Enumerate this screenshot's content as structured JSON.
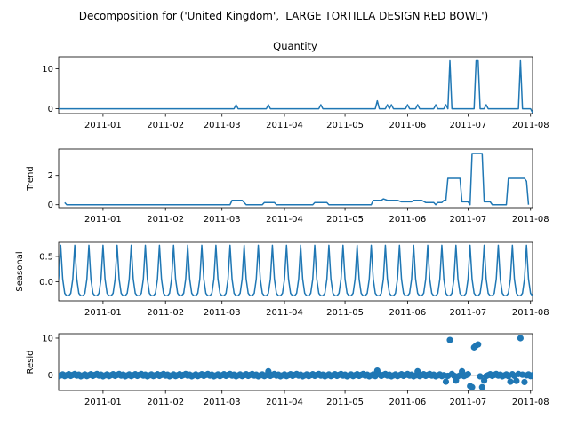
{
  "chart_data": {
    "type": "line",
    "title": "Decomposition for ('United Kingdom', 'LARGE TORTILLA DESIGN RED BOWL')",
    "colors": {
      "line": "#1f77b4",
      "axis": "#000000",
      "resid_zero": "#000000"
    },
    "x_ticks": [
      "2011-01",
      "2011-02",
      "2011-03",
      "2011-04",
      "2011-05",
      "2011-06",
      "2011-07",
      "2011-08"
    ],
    "x_range": [
      "2010-12-10",
      "2011-08-02"
    ],
    "panels": [
      {
        "key": "observed",
        "title": "Quantity",
        "ylabel": "",
        "ylim": [
          -1.2,
          13
        ],
        "yticks": [
          "0",
          "10"
        ],
        "tick_values": [
          0,
          10
        ],
        "style": "line",
        "spikes": [
          {
            "date": "2011-03-08",
            "value": 1
          },
          {
            "date": "2011-03-24",
            "value": 1
          },
          {
            "date": "2011-04-19",
            "value": 1
          },
          {
            "date": "2011-05-17",
            "value": 2
          },
          {
            "date": "2011-05-22",
            "value": 1
          },
          {
            "date": "2011-05-24",
            "value": 1
          },
          {
            "date": "2011-06-01",
            "value": 1
          },
          {
            "date": "2011-06-06",
            "value": 1
          },
          {
            "date": "2011-06-15",
            "value": 1
          },
          {
            "date": "2011-06-20",
            "value": 1
          },
          {
            "date": "2011-06-22",
            "value": 12
          },
          {
            "date": "2011-07-05",
            "value": 12
          },
          {
            "date": "2011-07-06",
            "value": 12
          },
          {
            "date": "2011-07-10",
            "value": 1
          },
          {
            "date": "2011-07-27",
            "value": 12
          },
          {
            "date": "2011-08-02",
            "value": -1
          }
        ]
      },
      {
        "key": "trend",
        "title": "",
        "ylabel": "Trend",
        "ylim": [
          -0.2,
          3.8
        ],
        "yticks": [
          "0",
          "2"
        ],
        "tick_values": [
          0,
          2
        ],
        "style": "line",
        "points": [
          [
            "2010-12-13",
            0.15
          ],
          [
            "2010-12-14",
            0
          ],
          [
            "2011-03-05",
            0
          ],
          [
            "2011-03-06",
            0.3
          ],
          [
            "2011-03-11",
            0.3
          ],
          [
            "2011-03-13",
            0
          ],
          [
            "2011-03-21",
            0
          ],
          [
            "2011-03-22",
            0.15
          ],
          [
            "2011-03-27",
            0.15
          ],
          [
            "2011-03-28",
            0
          ],
          [
            "2011-04-15",
            0
          ],
          [
            "2011-04-16",
            0.15
          ],
          [
            "2011-04-22",
            0.15
          ],
          [
            "2011-04-23",
            0
          ],
          [
            "2011-05-14",
            0
          ],
          [
            "2011-05-15",
            0.3
          ],
          [
            "2011-05-19",
            0.3
          ],
          [
            "2011-05-20",
            0.4
          ],
          [
            "2011-05-22",
            0.3
          ],
          [
            "2011-05-27",
            0.3
          ],
          [
            "2011-05-29",
            0.2
          ],
          [
            "2011-06-03",
            0.2
          ],
          [
            "2011-06-04",
            0.3
          ],
          [
            "2011-06-08",
            0.3
          ],
          [
            "2011-06-10",
            0.15
          ],
          [
            "2011-06-14",
            0.15
          ],
          [
            "2011-06-15",
            0
          ],
          [
            "2011-06-16",
            0.15
          ],
          [
            "2011-06-18",
            0.15
          ],
          [
            "2011-06-19",
            0.3
          ],
          [
            "2011-06-20",
            0.3
          ],
          [
            "2011-06-21",
            1.8
          ],
          [
            "2011-06-27",
            1.8
          ],
          [
            "2011-06-28",
            0.2
          ],
          [
            "2011-07-01",
            0.2
          ],
          [
            "2011-07-02",
            0
          ],
          [
            "2011-07-03",
            3.5
          ],
          [
            "2011-07-08",
            3.5
          ],
          [
            "2011-07-09",
            0.2
          ],
          [
            "2011-07-12",
            0.2
          ],
          [
            "2011-07-13",
            0
          ],
          [
            "2011-07-20",
            0
          ],
          [
            "2011-07-21",
            1.8
          ],
          [
            "2011-07-29",
            1.8
          ],
          [
            "2011-07-30",
            1.6
          ],
          [
            "2011-07-31",
            0
          ]
        ]
      },
      {
        "key": "seasonal",
        "title": "",
        "ylabel": "Seasonal",
        "ylim": [
          -0.38,
          0.78
        ],
        "yticks": [
          "0.0",
          "0.5"
        ],
        "tick_values": [
          0,
          0.5
        ],
        "style": "line",
        "period_days": 7,
        "min": -0.28,
        "max": 0.72
      },
      {
        "key": "resid",
        "title": "",
        "ylabel": "Resid",
        "ylim": [
          -4.2,
          11.2
        ],
        "yticks": [
          "0",
          "10"
        ],
        "tick_values": [
          0,
          10
        ],
        "style": "scatter",
        "outliers": [
          {
            "date": "2011-06-22",
            "value": 9.5
          },
          {
            "date": "2011-07-04",
            "value": 7.5
          },
          {
            "date": "2011-07-05",
            "value": 8.0
          },
          {
            "date": "2011-07-06",
            "value": 8.3
          },
          {
            "date": "2011-07-27",
            "value": 10.0
          },
          {
            "date": "2011-06-20",
            "value": -1.8
          },
          {
            "date": "2011-06-25",
            "value": -1.5
          },
          {
            "date": "2011-06-28",
            "value": 1.0
          },
          {
            "date": "2011-07-02",
            "value": -3.0
          },
          {
            "date": "2011-07-03",
            "value": -3.3
          },
          {
            "date": "2011-07-08",
            "value": -3.3
          },
          {
            "date": "2011-07-09",
            "value": -1.5
          },
          {
            "date": "2011-07-22",
            "value": -1.8
          },
          {
            "date": "2011-07-25",
            "value": -1.6
          },
          {
            "date": "2011-07-29",
            "value": -1.9
          },
          {
            "date": "2011-05-17",
            "value": 1.2
          },
          {
            "date": "2011-03-24",
            "value": 1.0
          },
          {
            "date": "2011-06-06",
            "value": 1.0
          }
        ]
      }
    ]
  }
}
